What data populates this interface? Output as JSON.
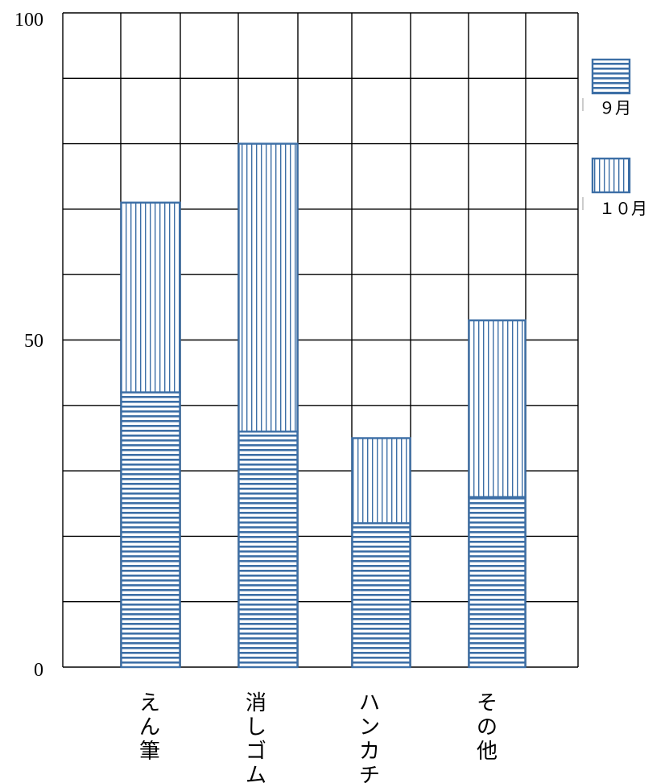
{
  "chart_data": {
    "type": "bar",
    "stacked": true,
    "categories": [
      "えん筆",
      "消しゴム",
      "ハンカチ",
      "その他"
    ],
    "series": [
      {
        "name": "９月",
        "pattern": "horizontal-stripes",
        "values": [
          42,
          36,
          22,
          26
        ]
      },
      {
        "name": "１０月",
        "pattern": "vertical-stripes",
        "values": [
          29,
          44,
          13,
          27
        ]
      }
    ],
    "ylim": [
      0,
      100
    ],
    "y_tick_labels": [
      "0",
      "50",
      "100"
    ],
    "grid": true,
    "legend_position": "right",
    "colors": {
      "bar_stroke": "#3d6fa6",
      "bar_fill": "#ffffff",
      "grid": "#000000"
    }
  }
}
